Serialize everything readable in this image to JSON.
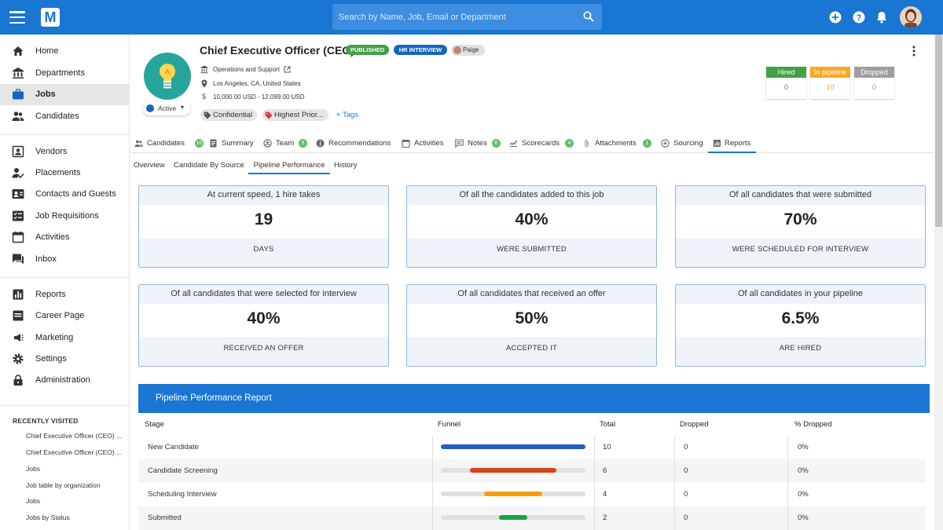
{
  "header": {
    "search_placeholder": "Search by Name, Job, Email or Department",
    "colors": {
      "primary": "#1976d2"
    }
  },
  "sidebar": {
    "items": [
      {
        "label": "Home",
        "icon": "home-icon"
      },
      {
        "label": "Departments",
        "icon": "bank-icon"
      },
      {
        "label": "Jobs",
        "icon": "briefcase-icon",
        "active": true
      },
      {
        "label": "Candidates",
        "icon": "people-icon"
      },
      {
        "label": "Vendors",
        "icon": "contact-card-icon"
      },
      {
        "label": "Placements",
        "icon": "person-check-icon"
      },
      {
        "label": "Contacts and Guests",
        "icon": "contacts-icon"
      },
      {
        "label": "Job Requisitions",
        "icon": "checklist-icon"
      },
      {
        "label": "Activities",
        "icon": "calendar-icon"
      },
      {
        "label": "Inbox",
        "icon": "chat-icon"
      },
      {
        "label": "Reports",
        "icon": "bar-chart-icon"
      },
      {
        "label": "Career Page",
        "icon": "web-page-icon"
      },
      {
        "label": "Marketing",
        "icon": "megaphone-icon"
      },
      {
        "label": "Settings",
        "icon": "gear-icon"
      },
      {
        "label": "Administration",
        "icon": "lock-icon"
      }
    ],
    "recent_title": "RECENTLY VISITED",
    "recent": [
      "Chief Executive Officer (CEO) ...",
      "Chief Executive Officer (CEO) ...",
      "Jobs",
      "Job table by organization",
      "Jobs",
      "Jobs by Status"
    ]
  },
  "job": {
    "title": "Chief Executive Officer (CEO)",
    "badges": {
      "published": "PUBLISHED",
      "hr_interview": "HR INTERVIEW"
    },
    "owner": "Paige",
    "status": "Active",
    "department": "Operations and Support",
    "location": "Los Angeles, CA, United States",
    "salary": "10,000.00 USD - 12,099.00 USD",
    "tags": [
      "Confidential",
      "Highest Prior..."
    ],
    "add_tags": "+ Tags",
    "stats": [
      {
        "label": "Hired",
        "value": "0",
        "color": "#43a047"
      },
      {
        "label": "In pipeline",
        "value": "10",
        "color": "#f9a825"
      },
      {
        "label": "Dropped",
        "value": "0",
        "color": "#9e9e9e"
      }
    ]
  },
  "tabs": [
    {
      "label": "Candidates",
      "count": "10",
      "icon": "people-icon"
    },
    {
      "label": "Summary",
      "icon": "document-icon"
    },
    {
      "label": "Team",
      "count": "5",
      "icon": "team-icon"
    },
    {
      "label": "Recommendations",
      "icon": "info-icon"
    },
    {
      "label": "Activities",
      "icon": "calendar-icon"
    },
    {
      "label": "Notes",
      "count": "6",
      "icon": "note-icon"
    },
    {
      "label": "Scorecards",
      "count": "4",
      "icon": "scorecard-icon"
    },
    {
      "label": "Attachments",
      "count": "1",
      "icon": "paperclip-icon"
    },
    {
      "label": "Sourcing",
      "icon": "sourcing-icon"
    },
    {
      "label": "Reports",
      "icon": "report-icon",
      "active": true
    }
  ],
  "subtabs": [
    "Overview",
    "Candidate By Source",
    "Pipeline Performance",
    "History"
  ],
  "kpis": [
    {
      "top": "At current speed, 1 hire takes",
      "value": "19",
      "bottom": "DAYS"
    },
    {
      "top": "Of all the candidates added to this job",
      "value": "40%",
      "bottom": "WERE SUBMITTED"
    },
    {
      "top": "Of all candidates that were submitted",
      "value": "70%",
      "bottom": "WERE SCHEDULED FOR INTERVIEW"
    },
    {
      "top": "Of all candidates that were selected for interview",
      "value": "40%",
      "bottom": "RECEIVED AN OFFER"
    },
    {
      "top": "Of all candidates that received an offer",
      "value": "50%",
      "bottom": "ACCEPTED IT"
    },
    {
      "top": "Of all candidates in your pipeline",
      "value": "6.5%",
      "bottom": "ARE HIRED"
    }
  ],
  "report": {
    "title": "Pipeline Performance Report",
    "columns": [
      "Stage",
      "Funnel",
      "Total",
      "Dropped",
      "% Dropped"
    ],
    "rows": [
      {
        "stage": "New Candidate",
        "total": "10",
        "dropped": "0",
        "pct_dropped": "0%",
        "funnel_fraction": 1.0,
        "color": "#1e5fc8"
      },
      {
        "stage": "Candidate Screening",
        "total": "6",
        "dropped": "0",
        "pct_dropped": "0%",
        "funnel_fraction": 0.6,
        "color": "#d84315"
      },
      {
        "stage": "Scheduling Interview",
        "total": "4",
        "dropped": "0",
        "pct_dropped": "0%",
        "funnel_fraction": 0.4,
        "color": "#f59e0b"
      },
      {
        "stage": "Submitted",
        "total": "2",
        "dropped": "0",
        "pct_dropped": "0%",
        "funnel_fraction": 0.2,
        "color": "#16a34a"
      }
    ]
  }
}
